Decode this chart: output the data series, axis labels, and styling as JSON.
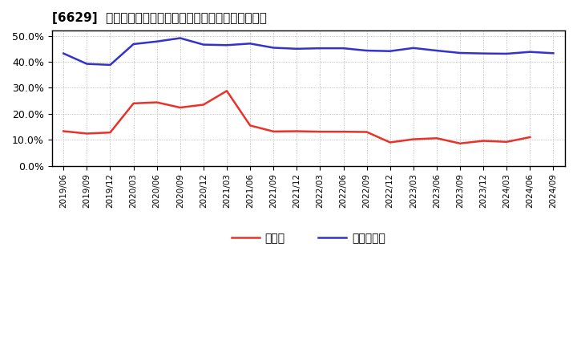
{
  "title": "[6629]  現預金、有利子負債の総資産に対する比率の推移",
  "dates": [
    "2019/06",
    "2019/09",
    "2019/12",
    "2020/03",
    "2020/06",
    "2020/09",
    "2020/12",
    "2021/03",
    "2021/06",
    "2021/09",
    "2021/12",
    "2022/03",
    "2022/06",
    "2022/09",
    "2022/12",
    "2023/03",
    "2023/06",
    "2023/09",
    "2023/12",
    "2024/03",
    "2024/06",
    "2024/09"
  ],
  "genkin": [
    0.133,
    0.124,
    0.128,
    0.24,
    0.244,
    0.224,
    0.235,
    0.288,
    0.155,
    0.132,
    0.133,
    0.131,
    0.131,
    0.13,
    0.09,
    0.102,
    0.106,
    0.086,
    0.096,
    0.092,
    0.11,
    null
  ],
  "yuriko": [
    0.432,
    0.392,
    0.388,
    0.468,
    0.478,
    0.491,
    0.466,
    0.464,
    0.47,
    0.454,
    0.45,
    0.452,
    0.452,
    0.443,
    0.441,
    0.453,
    0.443,
    0.434,
    0.432,
    0.431,
    0.438,
    0.433
  ],
  "genkin_color": "#e8322a",
  "yuriko_color": "#3333cc",
  "background_color": "#ffffff",
  "plot_bg_color": "#ffffff",
  "grid_color": "#aaaaaa",
  "ylim": [
    0.0,
    0.52
  ],
  "yticks": [
    0.0,
    0.1,
    0.2,
    0.3,
    0.4,
    0.5
  ],
  "legend_genkin": "現預金",
  "legend_yuriko": "有利子負債"
}
